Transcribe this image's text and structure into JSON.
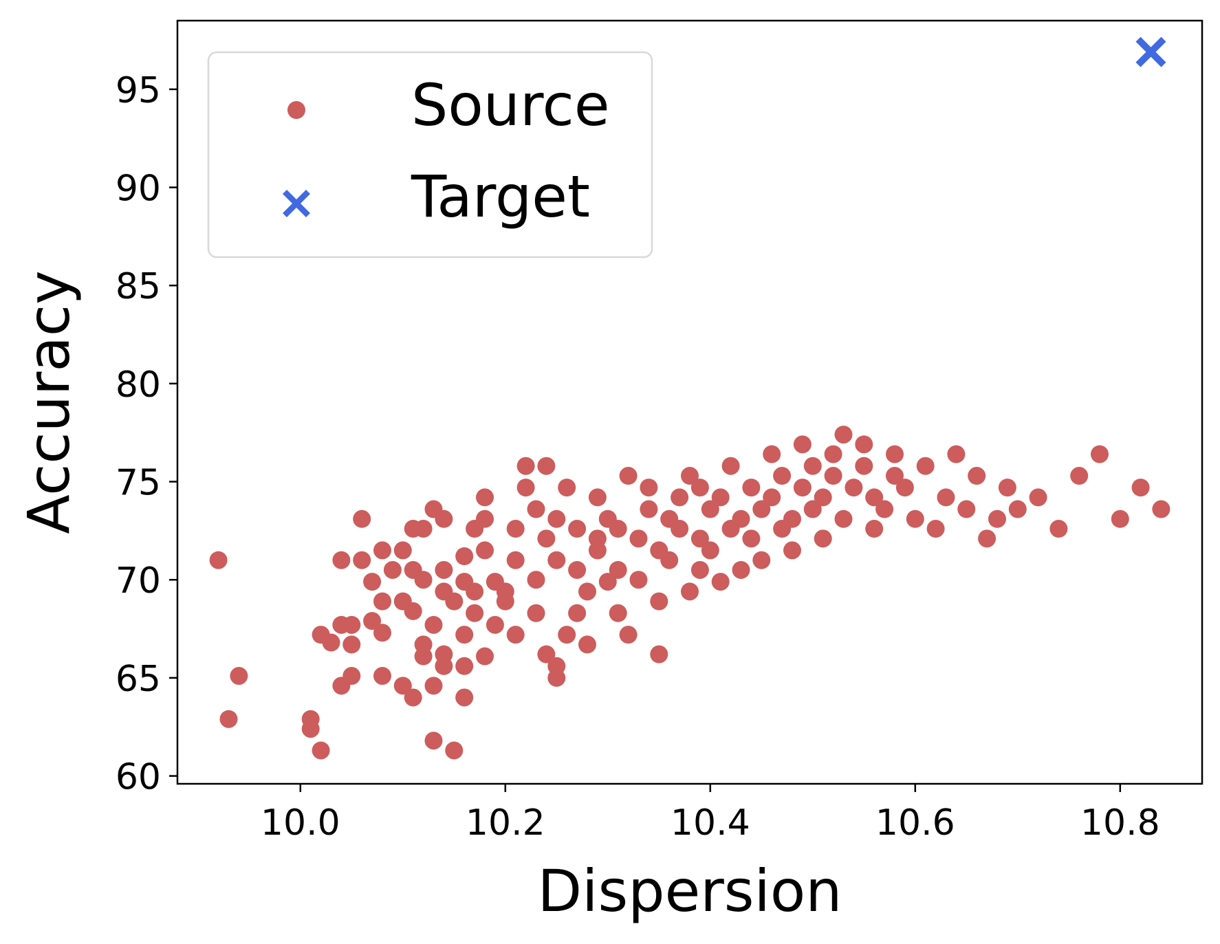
{
  "chart_data": {
    "type": "scatter",
    "xlabel": "Dispersion",
    "ylabel": "Accuracy",
    "xlim": [
      9.88,
      10.88
    ],
    "ylim": [
      59.6,
      98.5
    ],
    "xticks": [
      "10.0",
      "10.2",
      "10.4",
      "10.6",
      "10.8"
    ],
    "xtick_values": [
      10.0,
      10.2,
      10.4,
      10.6,
      10.8
    ],
    "yticks": [
      "60",
      "65",
      "70",
      "75",
      "80",
      "85",
      "90",
      "95"
    ],
    "ytick_values": [
      60,
      65,
      70,
      75,
      80,
      85,
      90,
      95
    ],
    "grid": false,
    "legend": {
      "placement": "upper-left",
      "entries": [
        {
          "label": "Source",
          "marker": "circle",
          "color": "#cd5c5c"
        },
        {
          "label": "Target",
          "marker": "x",
          "color": "#4169e1"
        }
      ]
    },
    "series": [
      {
        "name": "Source",
        "marker": "circle",
        "color": "#cd5c5c",
        "points": [
          [
            9.92,
            71.0
          ],
          [
            9.93,
            62.9
          ],
          [
            9.94,
            65.1
          ],
          [
            10.01,
            62.4
          ],
          [
            10.01,
            62.9
          ],
          [
            10.02,
            61.3
          ],
          [
            10.02,
            67.2
          ],
          [
            10.03,
            66.8
          ],
          [
            10.04,
            64.6
          ],
          [
            10.04,
            67.7
          ],
          [
            10.05,
            67.7
          ],
          [
            10.05,
            66.7
          ],
          [
            10.05,
            65.1
          ],
          [
            10.04,
            71.0
          ],
          [
            10.06,
            73.1
          ],
          [
            10.06,
            71.0
          ],
          [
            10.07,
            69.9
          ],
          [
            10.07,
            67.9
          ],
          [
            10.08,
            71.5
          ],
          [
            10.08,
            68.9
          ],
          [
            10.08,
            67.3
          ],
          [
            10.08,
            65.1
          ],
          [
            10.09,
            70.5
          ],
          [
            10.1,
            68.9
          ],
          [
            10.1,
            64.6
          ],
          [
            10.11,
            64.0
          ],
          [
            10.1,
            71.5
          ],
          [
            10.11,
            72.6
          ],
          [
            10.11,
            70.5
          ],
          [
            10.11,
            68.4
          ],
          [
            10.12,
            66.1
          ],
          [
            10.12,
            72.6
          ],
          [
            10.12,
            70.0
          ],
          [
            10.12,
            66.7
          ],
          [
            10.13,
            64.6
          ],
          [
            10.13,
            61.8
          ],
          [
            10.13,
            73.6
          ],
          [
            10.13,
            67.7
          ],
          [
            10.14,
            69.4
          ],
          [
            10.14,
            66.2
          ],
          [
            10.14,
            70.5
          ],
          [
            10.14,
            73.1
          ],
          [
            10.14,
            65.6
          ],
          [
            10.15,
            68.9
          ],
          [
            10.15,
            61.3
          ],
          [
            10.16,
            71.2
          ],
          [
            10.16,
            69.9
          ],
          [
            10.16,
            67.2
          ],
          [
            10.16,
            65.6
          ],
          [
            10.16,
            64.0
          ],
          [
            10.17,
            72.6
          ],
          [
            10.17,
            69.4
          ],
          [
            10.17,
            68.3
          ],
          [
            10.18,
            66.1
          ],
          [
            10.18,
            74.2
          ],
          [
            10.18,
            73.1
          ],
          [
            10.18,
            71.5
          ],
          [
            10.19,
            69.9
          ],
          [
            10.19,
            67.7
          ],
          [
            10.2,
            69.4
          ],
          [
            10.2,
            68.9
          ],
          [
            10.21,
            67.2
          ],
          [
            10.21,
            71.0
          ],
          [
            10.21,
            72.6
          ],
          [
            10.22,
            74.7
          ],
          [
            10.22,
            75.8
          ],
          [
            10.23,
            73.6
          ],
          [
            10.23,
            70.0
          ],
          [
            10.23,
            68.3
          ],
          [
            10.24,
            66.2
          ],
          [
            10.24,
            72.1
          ],
          [
            10.24,
            75.8
          ],
          [
            10.25,
            73.1
          ],
          [
            10.25,
            71.0
          ],
          [
            10.25,
            65.6
          ],
          [
            10.25,
            65.0
          ],
          [
            10.26,
            74.7
          ],
          [
            10.26,
            67.2
          ],
          [
            10.27,
            68.3
          ],
          [
            10.27,
            72.6
          ],
          [
            10.27,
            70.5
          ],
          [
            10.28,
            66.7
          ],
          [
            10.28,
            69.4
          ],
          [
            10.29,
            74.2
          ],
          [
            10.29,
            72.1
          ],
          [
            10.29,
            71.5
          ],
          [
            10.3,
            73.1
          ],
          [
            10.3,
            69.9
          ],
          [
            10.31,
            68.3
          ],
          [
            10.31,
            70.5
          ],
          [
            10.31,
            72.6
          ],
          [
            10.32,
            75.3
          ],
          [
            10.32,
            67.2
          ],
          [
            10.33,
            70.0
          ],
          [
            10.33,
            72.1
          ],
          [
            10.34,
            74.7
          ],
          [
            10.34,
            73.6
          ],
          [
            10.35,
            71.5
          ],
          [
            10.35,
            66.2
          ],
          [
            10.35,
            68.9
          ],
          [
            10.36,
            71.0
          ],
          [
            10.36,
            73.1
          ],
          [
            10.37,
            74.2
          ],
          [
            10.37,
            72.6
          ],
          [
            10.38,
            75.3
          ],
          [
            10.38,
            69.4
          ],
          [
            10.39,
            70.5
          ],
          [
            10.39,
            72.1
          ],
          [
            10.39,
            74.7
          ],
          [
            10.4,
            73.6
          ],
          [
            10.4,
            71.5
          ],
          [
            10.41,
            69.9
          ],
          [
            10.41,
            74.2
          ],
          [
            10.42,
            75.8
          ],
          [
            10.42,
            72.6
          ],
          [
            10.43,
            73.1
          ],
          [
            10.43,
            70.5
          ],
          [
            10.44,
            74.7
          ],
          [
            10.44,
            72.1
          ],
          [
            10.45,
            71.0
          ],
          [
            10.45,
            73.6
          ],
          [
            10.46,
            76.4
          ],
          [
            10.46,
            74.2
          ],
          [
            10.47,
            75.3
          ],
          [
            10.47,
            72.6
          ],
          [
            10.48,
            71.5
          ],
          [
            10.48,
            73.1
          ],
          [
            10.49,
            74.7
          ],
          [
            10.49,
            76.9
          ],
          [
            10.5,
            75.8
          ],
          [
            10.5,
            73.6
          ],
          [
            10.51,
            72.1
          ],
          [
            10.51,
            74.2
          ],
          [
            10.52,
            76.4
          ],
          [
            10.52,
            75.3
          ],
          [
            10.53,
            77.4
          ],
          [
            10.53,
            73.1
          ],
          [
            10.54,
            74.7
          ],
          [
            10.55,
            75.8
          ],
          [
            10.55,
            76.9
          ],
          [
            10.56,
            72.6
          ],
          [
            10.56,
            74.2
          ],
          [
            10.57,
            73.6
          ],
          [
            10.58,
            75.3
          ],
          [
            10.58,
            76.4
          ],
          [
            10.59,
            74.7
          ],
          [
            10.6,
            73.1
          ],
          [
            10.61,
            75.8
          ],
          [
            10.62,
            72.6
          ],
          [
            10.63,
            74.2
          ],
          [
            10.64,
            76.4
          ],
          [
            10.65,
            73.6
          ],
          [
            10.66,
            75.3
          ],
          [
            10.67,
            72.1
          ],
          [
            10.68,
            73.1
          ],
          [
            10.69,
            74.7
          ],
          [
            10.7,
            73.6
          ],
          [
            10.72,
            74.2
          ],
          [
            10.74,
            72.6
          ],
          [
            10.76,
            75.3
          ],
          [
            10.78,
            76.4
          ],
          [
            10.8,
            73.1
          ],
          [
            10.82,
            74.7
          ],
          [
            10.84,
            73.6
          ]
        ]
      },
      {
        "name": "Target",
        "marker": "x",
        "color": "#4169e1",
        "points": [
          [
            10.83,
            96.9
          ]
        ]
      }
    ]
  }
}
